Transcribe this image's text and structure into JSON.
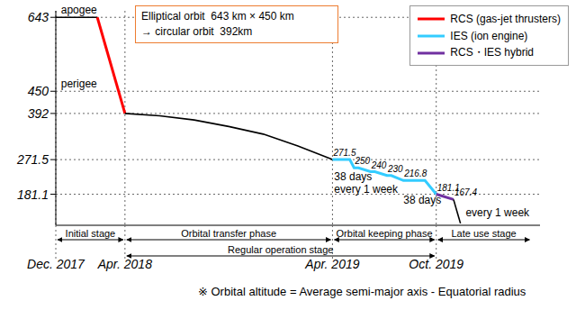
{
  "chart_data": {
    "type": "line",
    "legend": "top right",
    "grid": true,
    "xlim": [
      0,
      28
    ],
    "xticks": [
      {
        "value": 0,
        "label": "Dec. 2017"
      },
      {
        "value": 4,
        "label": "Apr. 2018"
      },
      {
        "value": 16,
        "label": "Apr. 2019"
      },
      {
        "value": 22,
        "label": "Oct. 2019"
      }
    ],
    "ylim": [
      100,
      660
    ],
    "yticks": [
      181.1,
      271.5,
      392,
      450,
      643
    ],
    "series": [
      {
        "color": "#000000",
        "x": [
          0,
          2.4
        ],
        "values": [
          643,
          643
        ]
      },
      {
        "name": "RCS (gas-jet thrusters)",
        "color": "#ff0000",
        "x": [
          2.4,
          4
        ],
        "values": [
          643,
          392
        ]
      },
      {
        "color": "#000000",
        "x": [
          4,
          6,
          8,
          10,
          12,
          14,
          16
        ],
        "values": [
          392,
          386,
          375,
          358,
          338,
          307,
          271.5
        ]
      },
      {
        "name": "IES (ion engine)",
        "color": "#33ccff",
        "data_labels": true,
        "x": [
          16,
          17.0,
          17.25,
          17.5,
          18.2,
          18.45,
          19.15,
          19.4,
          20.1,
          21.35,
          22.0
        ],
        "values": [
          271.5,
          271.5,
          250,
          250,
          240,
          240,
          230,
          230,
          216.8,
          216.8,
          181.1
        ],
        "value_labels": [
          "271.5",
          null,
          "250",
          null,
          "240",
          null,
          "230",
          null,
          "216.8",
          null,
          "181.1"
        ]
      },
      {
        "name": "RCS・IES hybrid",
        "color": "#7030a0",
        "data_labels": true,
        "x": [
          22.0,
          23.0
        ],
        "values": [
          181.1,
          167.4
        ],
        "value_labels": [
          null,
          "167.4"
        ]
      },
      {
        "color": "#000000",
        "x": [
          23.0,
          23.4
        ],
        "values": [
          167.4,
          105
        ]
      }
    ],
    "annotations": [
      {
        "text": "apogee",
        "x": 0.3,
        "y": 643
      },
      {
        "text": "perigee",
        "x": 0.3,
        "y": 450
      },
      {
        "text": "38 days",
        "x": 16.1,
        "y": 208
      },
      {
        "text": "every 1 week",
        "x": 16.1,
        "y": 175
      },
      {
        "text": "38 days",
        "x": 20.1,
        "y": 147
      },
      {
        "text": "every 1 week",
        "x": 23.7,
        "y": 114
      }
    ],
    "box_text": [
      "Elliptical orbit  643 km × 450 km",
      "→ circular orbit  392km"
    ],
    "phases": [
      {
        "label": "Initial stage",
        "from": 0,
        "to": 4
      },
      {
        "label": "Orbital transfer phase",
        "from": 4,
        "to": 16
      },
      {
        "label": "Orbital keeping phase",
        "from": 16,
        "to": 22
      },
      {
        "label": "Regular operation stage",
        "from": 4,
        "to": 22
      },
      {
        "label": "Late use stage",
        "from": 22,
        "to": 27.5
      }
    ],
    "note": "※ Orbital altitude = Average semi-major axis - Equatorial radius"
  }
}
